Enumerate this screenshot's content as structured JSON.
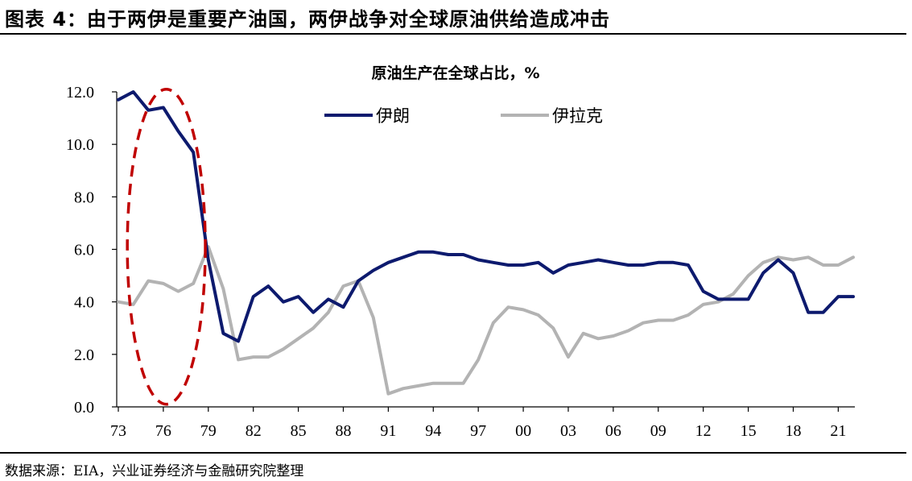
{
  "header": {
    "title": "图表 4：由于两伊是重要产油国，两伊战争对全球原油供给造成冲击"
  },
  "footer": {
    "source": "数据来源：EIA，兴业证券经济与金融研究院整理"
  },
  "colors": {
    "iran": "#0d1a6e",
    "iraq": "#b3b3b3",
    "highlight": "#c00000"
  },
  "chart_data": {
    "type": "line",
    "title": "原油生产在全球占比，%",
    "xlabel": "",
    "ylabel": "",
    "ylim": [
      0,
      12
    ],
    "yticks": [
      0,
      2,
      4,
      6,
      8,
      10,
      12
    ],
    "ytick_labels": [
      "0.0",
      "2.0",
      "4.0",
      "6.0",
      "8.0",
      "10.0",
      "12.0"
    ],
    "xlim": [
      1973,
      2022
    ],
    "xticks": [
      1973,
      1976,
      1979,
      1982,
      1985,
      1988,
      1991,
      1994,
      1997,
      2000,
      2003,
      2006,
      2009,
      2012,
      2015,
      2018,
      2021
    ],
    "xtick_labels": [
      "73",
      "76",
      "79",
      "82",
      "85",
      "88",
      "91",
      "94",
      "97",
      "00",
      "03",
      "06",
      "09",
      "12",
      "15",
      "18",
      "21"
    ],
    "grid": false,
    "legend": "top-center",
    "x": [
      1973,
      1974,
      1975,
      1976,
      1977,
      1978,
      1979,
      1980,
      1981,
      1982,
      1983,
      1984,
      1985,
      1986,
      1987,
      1988,
      1989,
      1990,
      1991,
      1992,
      1993,
      1994,
      1995,
      1996,
      1997,
      1998,
      1999,
      2000,
      2001,
      2002,
      2003,
      2004,
      2005,
      2006,
      2007,
      2008,
      2009,
      2010,
      2011,
      2012,
      2013,
      2014,
      2015,
      2016,
      2017,
      2018,
      2019,
      2020,
      2021,
      2022
    ],
    "series": [
      {
        "name": "伊朗",
        "values": [
          11.7,
          12.0,
          11.3,
          11.4,
          10.5,
          9.7,
          5.6,
          2.8,
          2.5,
          4.2,
          4.6,
          4.0,
          4.2,
          3.6,
          4.1,
          3.8,
          4.8,
          5.2,
          5.5,
          5.7,
          5.9,
          5.9,
          5.8,
          5.8,
          5.6,
          5.5,
          5.4,
          5.4,
          5.5,
          5.1,
          5.4,
          5.5,
          5.6,
          5.5,
          5.4,
          5.4,
          5.5,
          5.5,
          5.4,
          4.4,
          4.1,
          4.1,
          4.1,
          5.1,
          5.6,
          5.1,
          3.6,
          3.6,
          4.2,
          4.2
        ]
      },
      {
        "name": "伊拉克",
        "values": [
          4.0,
          3.9,
          4.8,
          4.7,
          4.4,
          4.7,
          6.1,
          4.5,
          1.8,
          1.9,
          1.9,
          2.2,
          2.6,
          3.0,
          3.6,
          4.6,
          4.8,
          3.4,
          0.5,
          0.7,
          0.8,
          0.9,
          0.9,
          0.9,
          1.8,
          3.2,
          3.8,
          3.7,
          3.5,
          3.0,
          1.9,
          2.8,
          2.6,
          2.7,
          2.9,
          3.2,
          3.3,
          3.3,
          3.5,
          3.9,
          4.0,
          4.3,
          5.0,
          5.5,
          5.7,
          5.6,
          5.7,
          5.4,
          5.4,
          5.7
        ]
      }
    ],
    "annotation": {
      "type": "ellipse",
      "x_center": 1976.2,
      "y_center": 6.1,
      "x_radius": 2.6,
      "y_radius": 6.0
    }
  }
}
